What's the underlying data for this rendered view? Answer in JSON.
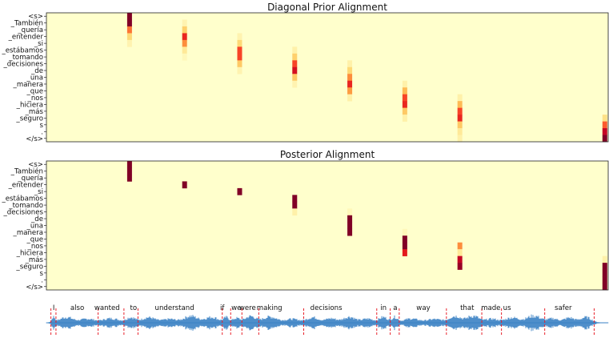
{
  "chart_data": [
    {
      "type": "heatmap",
      "title": "Diagonal Prior Alignment",
      "ytick_labels": [
        "<s>",
        "_También",
        "_quería",
        "_entender",
        "_si",
        "_estábamos",
        "_tomando",
        "_decisiones",
        "_de",
        "_una",
        "_manera",
        "_que",
        "_nos",
        "_hiciera",
        "_más",
        "_seguro",
        "s",
        ".",
        "</s>"
      ],
      "n_columns": 8,
      "colormap": "YlOrRd",
      "value_range": [
        0,
        1
      ],
      "background_value": 0.0,
      "columns": [
        {
          "x": 0.148,
          "cells": {
            "0": 1.0,
            "1": 1.0,
            "2": 0.55,
            "3": 0.25,
            "4": 0.08
          }
        },
        {
          "x": 0.246,
          "cells": {
            "1": 0.08,
            "2": 0.28,
            "3": 0.72,
            "4": 0.5,
            "5": 0.15,
            "6": 0.05
          }
        },
        {
          "x": 0.344,
          "cells": {
            "3": 0.08,
            "4": 0.25,
            "5": 0.65,
            "6": 0.65,
            "7": 0.3,
            "8": 0.08
          }
        },
        {
          "x": 0.442,
          "cells": {
            "5": 0.1,
            "6": 0.28,
            "7": 0.65,
            "8": 0.8,
            "9": 0.3,
            "10": 0.08
          }
        },
        {
          "x": 0.54,
          "cells": {
            "7": 0.1,
            "8": 0.25,
            "9": 0.5,
            "10": 0.72,
            "11": 0.45,
            "12": 0.1
          }
        },
        {
          "x": 0.638,
          "cells": {
            "10": 0.1,
            "11": 0.35,
            "12": 0.65,
            "13": 0.72,
            "14": 0.3,
            "15": 0.1
          }
        },
        {
          "x": 0.736,
          "cells": {
            "12": 0.1,
            "13": 0.35,
            "14": 0.65,
            "15": 0.72,
            "16": 0.3,
            "17": 0.15,
            "18": 0.1
          }
        },
        {
          "x": 0.994,
          "cells": {
            "15": 0.2,
            "16": 0.6,
            "17": 0.85,
            "18": 1.0
          }
        }
      ]
    },
    {
      "type": "heatmap",
      "title": "Posterior Alignment",
      "ytick_labels": [
        "<s>",
        "_También",
        "_quería",
        "_entender",
        "_si",
        "_estábamos",
        "_tomando",
        "_decisiones",
        "_de",
        "_una",
        "_manera",
        "_que",
        "_nos",
        "_hiciera",
        "_más",
        "_seguro",
        "s",
        ".",
        "</s>"
      ],
      "n_columns": 8,
      "colormap": "YlOrRd",
      "value_range": [
        0,
        1
      ],
      "background_value": 0.0,
      "columns": [
        {
          "x": 0.148,
          "cells": {
            "0": 1.0,
            "1": 1.0,
            "2": 1.0
          }
        },
        {
          "x": 0.246,
          "cells": {
            "3": 1.0
          }
        },
        {
          "x": 0.344,
          "cells": {
            "4": 1.0
          }
        },
        {
          "x": 0.442,
          "cells": {
            "5": 1.0,
            "6": 1.0,
            "7": 0.1
          }
        },
        {
          "x": 0.54,
          "cells": {
            "7": 0.05,
            "8": 1.0,
            "9": 1.0,
            "10": 1.0
          }
        },
        {
          "x": 0.638,
          "cells": {
            "10": 0.05,
            "11": 1.0,
            "12": 1.0,
            "13": 0.75
          }
        },
        {
          "x": 0.736,
          "cells": {
            "12": 0.5,
            "13": 0.15,
            "14": 0.85,
            "15": 0.95
          }
        },
        {
          "x": 0.994,
          "cells": {
            "14": 0.1,
            "15": 1.0,
            "16": 1.0,
            "17": 1.0,
            "18": 1.0
          }
        }
      ]
    },
    {
      "type": "line",
      "title": "",
      "series": [
        {
          "values": "audio waveform envelope"
        }
      ],
      "words": [
        {
          "text": "I",
          "x": 0.013,
          "start": 0.008,
          "end": 0.017
        },
        {
          "text": "also",
          "x": 0.055,
          "start": 0.017,
          "end": 0.092
        },
        {
          "text": "wanted",
          "x": 0.108,
          "start": 0.092,
          "end": 0.138
        },
        {
          "text": "to",
          "x": 0.155,
          "start": 0.138,
          "end": 0.163
        },
        {
          "text": "understand",
          "x": 0.228,
          "start": 0.163,
          "end": 0.313
        },
        {
          "text": "if",
          "x": 0.313,
          "start": 0.313,
          "end": 0.328
        },
        {
          "text": "we",
          "x": 0.338,
          "start": 0.328,
          "end": 0.348
        },
        {
          "text": "were",
          "x": 0.358,
          "start": 0.348,
          "end": 0.378
        },
        {
          "text": "making",
          "x": 0.397,
          "start": 0.378,
          "end": 0.458
        },
        {
          "text": "decisions",
          "x": 0.498,
          "start": 0.458,
          "end": 0.588
        },
        {
          "text": "in",
          "x": 0.6,
          "start": 0.588,
          "end": 0.612
        },
        {
          "text": "a",
          "x": 0.621,
          "start": 0.612,
          "end": 0.628
        },
        {
          "text": "way",
          "x": 0.671,
          "start": 0.628,
          "end": 0.712
        },
        {
          "text": "that",
          "x": 0.749,
          "start": 0.712,
          "end": 0.775
        },
        {
          "text": "made",
          "x": 0.791,
          "start": 0.775,
          "end": 0.81
        },
        {
          "text": "us",
          "x": 0.82,
          "start": 0.81,
          "end": 0.887
        },
        {
          "text": "safer",
          "x": 0.92,
          "start": 0.887,
          "end": 0.975
        }
      ],
      "boundary_color": "#e8202a",
      "waveform_color": "#3b82c4"
    }
  ]
}
